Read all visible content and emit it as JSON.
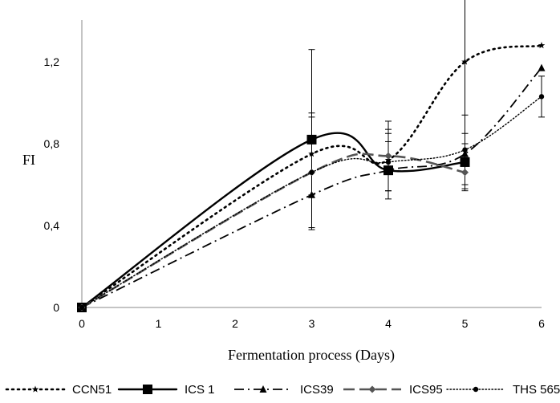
{
  "chart_data": {
    "type": "line",
    "xlabel": "Fermentation process (Days)",
    "ylabel": "FI",
    "xlim": [
      0,
      6
    ],
    "ylim": [
      0,
      1.4
    ],
    "x_ticks": [
      "0",
      "1",
      "2",
      "3",
      "4",
      "5",
      "6"
    ],
    "y_ticks": [
      {
        "value": 0,
        "label": "0"
      },
      {
        "value": 0.4,
        "label": "0,4"
      },
      {
        "value": 0.8,
        "label": "0,8"
      },
      {
        "value": 1.2,
        "label": "1,2"
      }
    ],
    "grid": false,
    "legend_position": "bottom",
    "series": [
      {
        "name": "CCN51",
        "color": "#000000",
        "dash": "dotted",
        "marker": "star",
        "x": [
          0,
          3,
          4,
          5,
          6
        ],
        "y": [
          0,
          0.75,
          0.72,
          1.2,
          1.28
        ],
        "err": [
          0,
          0.2,
          0.15,
          0.4,
          0
        ]
      },
      {
        "name": "ICS 1",
        "color": "#000000",
        "dash": "solid",
        "marker": "square",
        "x": [
          0,
          3,
          4,
          5
        ],
        "y": [
          0,
          0.82,
          0.67,
          0.71
        ],
        "err": [
          0,
          0.44,
          0.14,
          0.14
        ]
      },
      {
        "name": "ICS39",
        "color": "#000000",
        "dash": "dashdot",
        "marker": "triangle",
        "x": [
          0,
          3,
          4,
          5,
          6
        ],
        "y": [
          0,
          0.55,
          0.67,
          0.75,
          1.17
        ],
        "err": [
          0,
          0,
          0,
          0,
          0
        ]
      },
      {
        "name": "ICS95",
        "color": "#555555",
        "dash": "longdash",
        "marker": "diamond",
        "x": [
          0,
          3,
          4,
          5
        ],
        "y": [
          0,
          0.66,
          0.74,
          0.66
        ],
        "err": [
          0,
          0.27,
          0.17,
          0.08
        ]
      },
      {
        "name": "THS 565",
        "color": "#000000",
        "dash": "finedot",
        "marker": "circle",
        "x": [
          0,
          3,
          4,
          5,
          6
        ],
        "y": [
          0,
          0.66,
          0.71,
          0.77,
          1.03
        ],
        "err": [
          0,
          0,
          0.14,
          0.17,
          0.1
        ]
      }
    ]
  }
}
